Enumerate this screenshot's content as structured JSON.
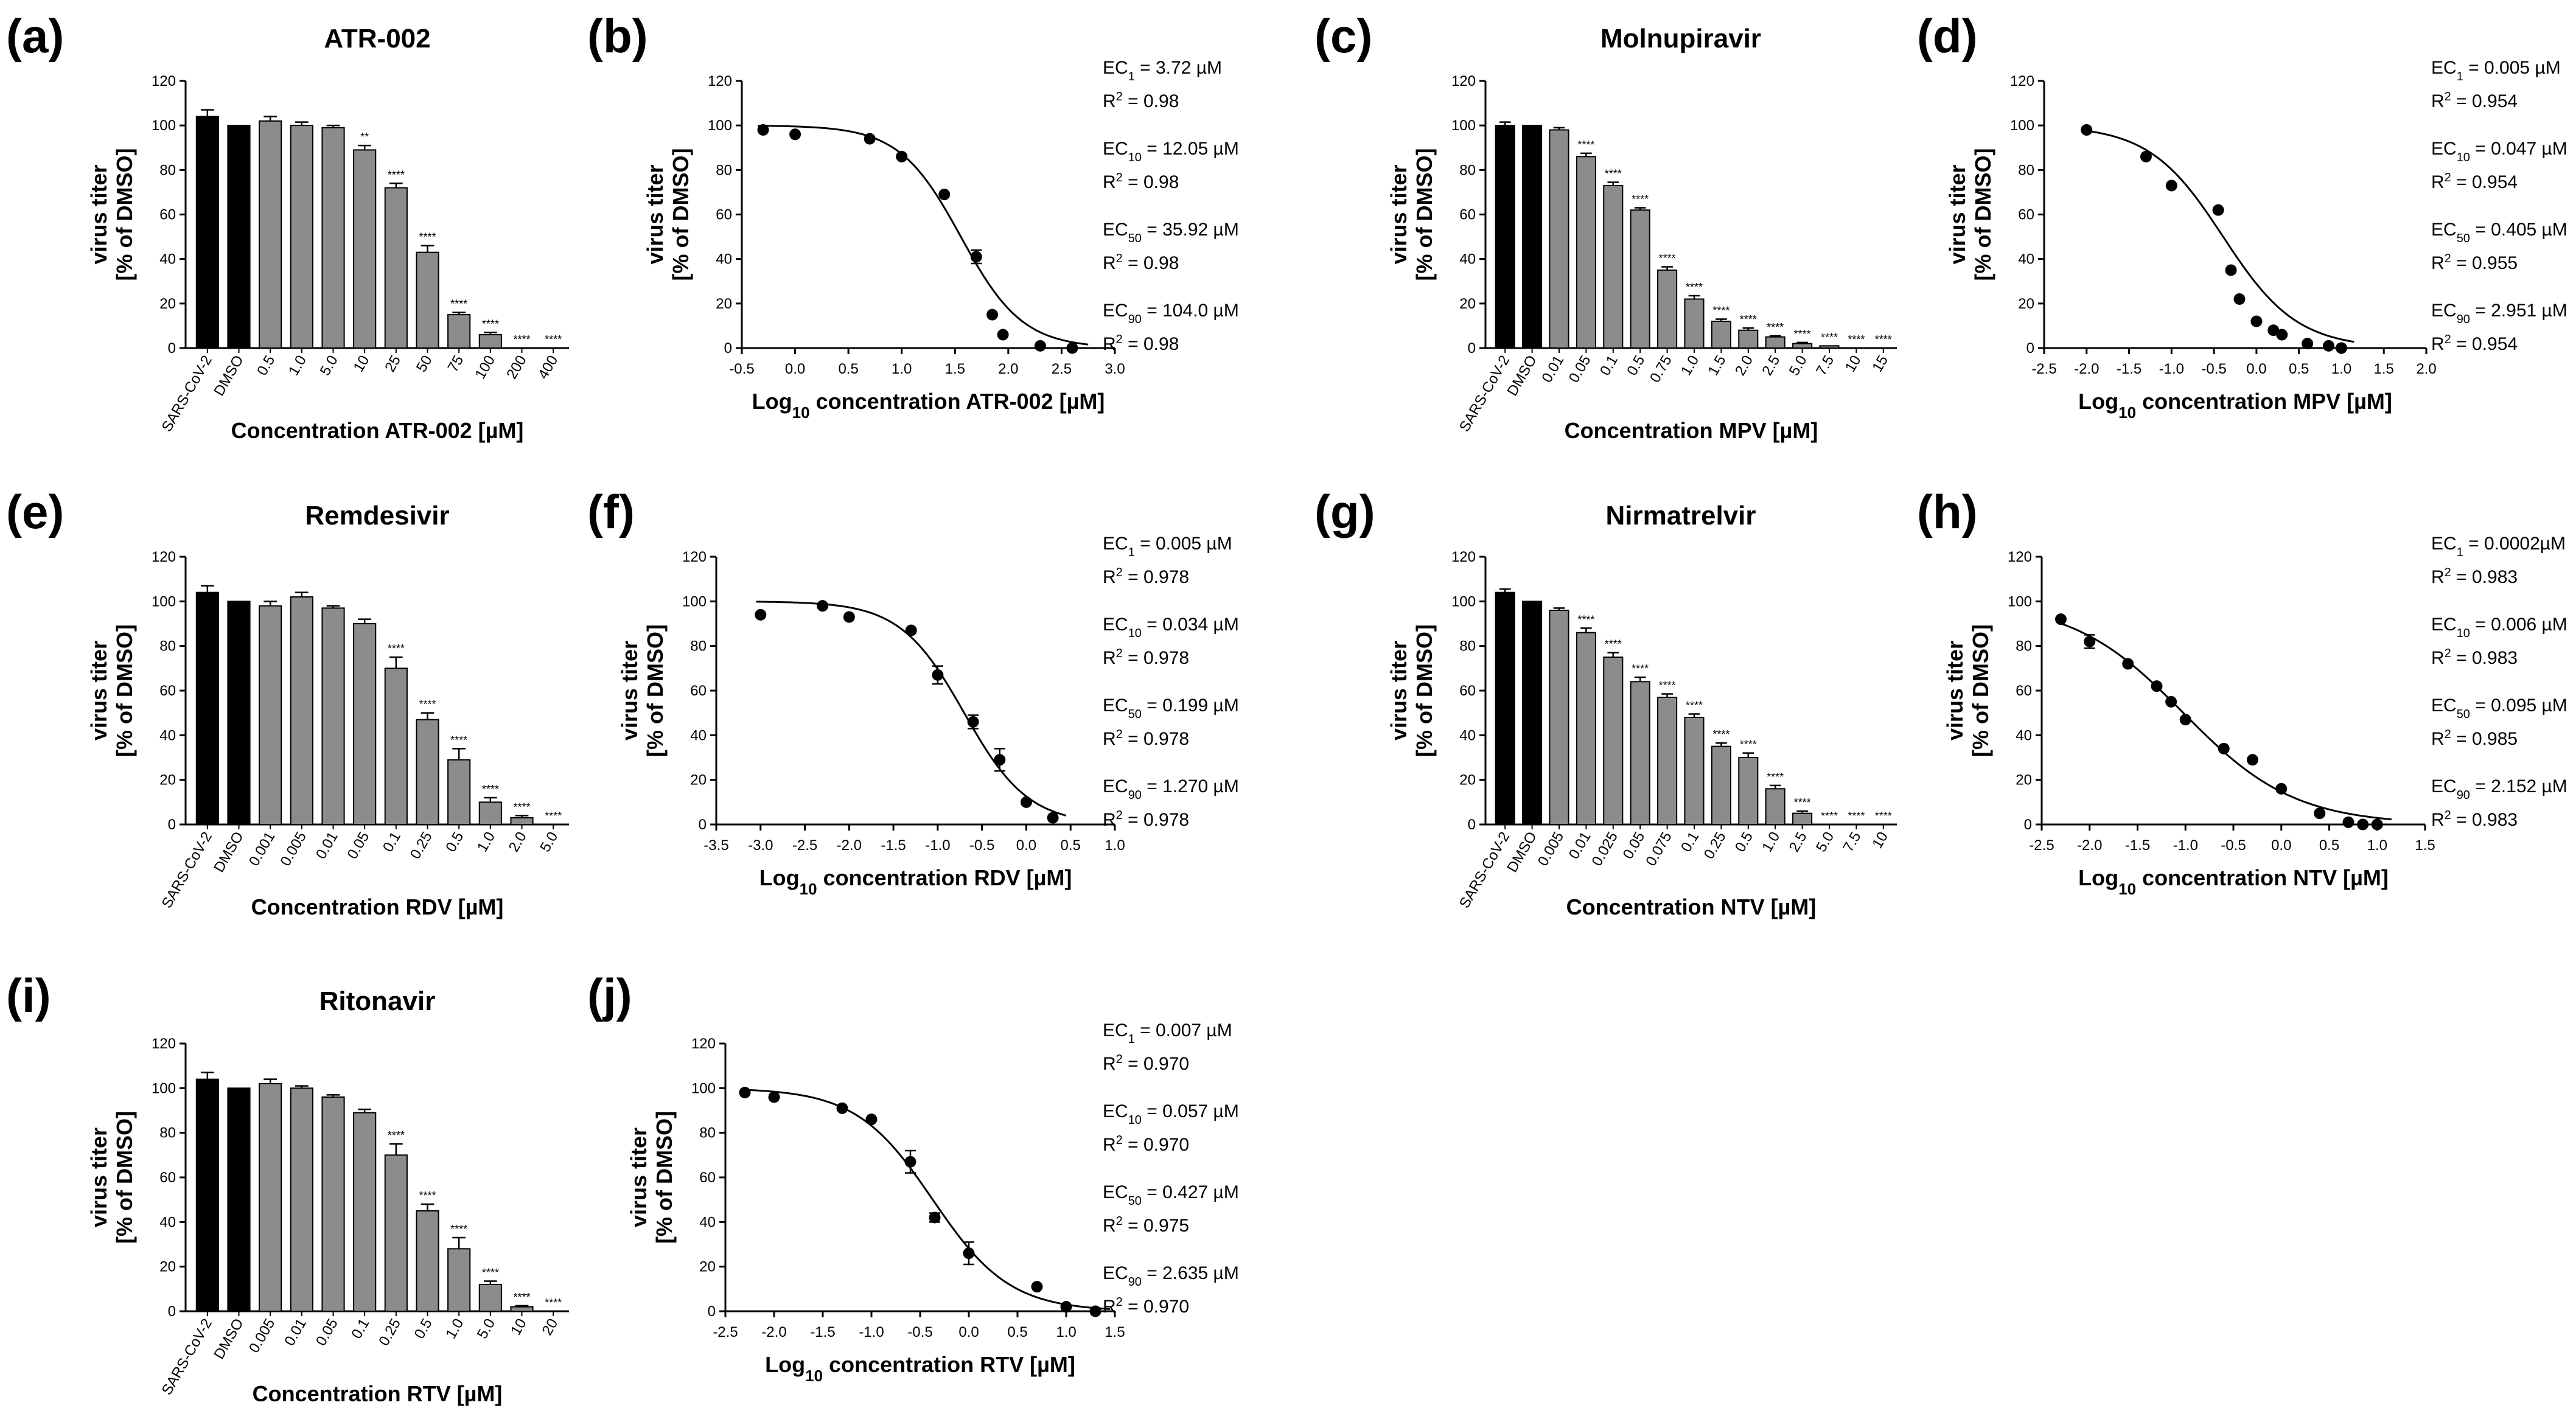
{
  "figure": {
    "y_label_line1": "virus titer",
    "y_label_line2": "[% of DMSO]"
  },
  "chart_data": [
    {
      "id": "a",
      "panel_label": "(a)",
      "type": "bar",
      "title": "ATR-002",
      "xlabel": "Concentration ATR-002 [µM]",
      "ylabel": "virus titer [% of DMSO]",
      "ylim": [
        0,
        120
      ],
      "yticks": [
        "0",
        "20",
        "40",
        "60",
        "80",
        "100",
        "120"
      ],
      "categories": [
        "SARS-CoV-2",
        "DMSO",
        "0.5",
        "1.0",
        "5.0",
        "10",
        "25",
        "50",
        "75",
        "100",
        "200",
        "400"
      ],
      "values": [
        104,
        100,
        102,
        100,
        99,
        89,
        72,
        43,
        15,
        6,
        0,
        0
      ],
      "errors": [
        3,
        0,
        2,
        1.5,
        1,
        2,
        2,
        3,
        1,
        1,
        0,
        0
      ],
      "colors": [
        "#000000",
        "#000000",
        "#8c8c8c",
        "#8c8c8c",
        "#8c8c8c",
        "#8c8c8c",
        "#8c8c8c",
        "#8c8c8c",
        "#8c8c8c",
        "#8c8c8c",
        "#8c8c8c",
        "#8c8c8c"
      ],
      "significance": [
        "",
        "",
        "",
        "",
        "",
        "**",
        "****",
        "****",
        "****",
        "****",
        "****",
        "****"
      ]
    },
    {
      "id": "b",
      "panel_label": "(b)",
      "type": "scatter",
      "fit": "dose-response",
      "xlabel_prefix": "Log",
      "xlabel_sub": "10",
      "xlabel_suffix": " concentration ATR-002 [µM]",
      "ylabel": "virus titer [% of DMSO]",
      "xlim": [
        -0.5,
        3.0
      ],
      "ylim": [
        0,
        120
      ],
      "xticks": [
        "-0.5",
        "0.0",
        "0.5",
        "1.0",
        "1.5",
        "2.0",
        "2.5",
        "3.0"
      ],
      "yticks": [
        "0",
        "20",
        "40",
        "60",
        "80",
        "100",
        "120"
      ],
      "x": [
        -0.3,
        0.0,
        0.7,
        1.0,
        1.4,
        1.7,
        1.85,
        1.95,
        2.3,
        2.6
      ],
      "y": [
        98,
        96,
        94,
        86,
        69,
        41,
        15,
        6,
        1,
        0
      ],
      "errors": [
        0,
        0,
        0,
        0,
        0,
        3,
        0,
        0,
        0,
        0
      ],
      "fit_params": {
        "top": 100,
        "bottom": 0,
        "log_ec50": 1.555,
        "hill": 1.5
      },
      "annotations": [
        {
          "sub": "1",
          "value": " = 3.72 µM",
          "r2": " = 0.98"
        },
        {
          "sub": "10",
          "value": " = 12.05 µM",
          "r2": " = 0.98"
        },
        {
          "sub": "50",
          "value": " = 35.92 µM",
          "r2": " = 0.98"
        },
        {
          "sub": "90",
          "value": " = 104.0 µM",
          "r2": " = 0.98"
        }
      ]
    },
    {
      "id": "c",
      "panel_label": "(c)",
      "type": "bar",
      "title": "Molnupiravir",
      "xlabel": "Concentration MPV [µM]",
      "ylabel": "virus titer [% of DMSO]",
      "ylim": [
        0,
        120
      ],
      "yticks": [
        "0",
        "20",
        "40",
        "60",
        "80",
        "100",
        "120"
      ],
      "categories": [
        "SARS-CoV-2",
        "DMSO",
        "0.01",
        "0.05",
        "0.1",
        "0.5",
        "0.75",
        "1.0",
        "1.5",
        "2.0",
        "2.5",
        "5.0",
        "7.5",
        "10",
        "15"
      ],
      "values": [
        100,
        100,
        98,
        86,
        73,
        62,
        35,
        22,
        12,
        8,
        5,
        2,
        1,
        0,
        0
      ],
      "errors": [
        1.5,
        0,
        1,
        1.5,
        1.5,
        1,
        1.5,
        1.5,
        1,
        1,
        0.5,
        0.5,
        0,
        0,
        0
      ],
      "colors": [
        "#000000",
        "#000000",
        "#8c8c8c",
        "#8c8c8c",
        "#8c8c8c",
        "#8c8c8c",
        "#8c8c8c",
        "#8c8c8c",
        "#8c8c8c",
        "#8c8c8c",
        "#8c8c8c",
        "#8c8c8c",
        "#8c8c8c",
        "#8c8c8c",
        "#8c8c8c"
      ],
      "significance": [
        "",
        "",
        "",
        "****",
        "****",
        "****",
        "****",
        "****",
        "****",
        "****",
        "****",
        "****",
        "****",
        "****",
        "****"
      ]
    },
    {
      "id": "d",
      "panel_label": "(d)",
      "type": "scatter",
      "fit": "dose-response",
      "xlabel_prefix": "Log",
      "xlabel_sub": "10",
      "xlabel_suffix": " concentration MPV [µM]",
      "ylabel": "virus titer [% of DMSO]",
      "xlim": [
        -2.5,
        2.0
      ],
      "ylim": [
        0,
        120
      ],
      "xticks": [
        "-2.5",
        "-2.0",
        "-1.5",
        "-1.0",
        "-0.5",
        "0.0",
        "0.5",
        "1.0",
        "1.5",
        "2.0"
      ],
      "yticks": [
        "0",
        "20",
        "40",
        "60",
        "80",
        "100",
        "120"
      ],
      "x": [
        -2.0,
        -1.3,
        -1.0,
        -0.45,
        -0.3,
        -0.2,
        0.0,
        0.2,
        0.3,
        0.6,
        0.85,
        1.0
      ],
      "y": [
        98,
        86,
        73,
        62,
        35,
        22,
        12,
        8,
        6,
        2,
        1,
        0
      ],
      "errors": [
        0,
        0,
        0,
        0,
        0,
        0,
        0,
        0,
        0,
        0,
        0,
        0
      ],
      "fit_params": {
        "top": 100,
        "bottom": 0,
        "log_ec50": -0.392,
        "hill": 1.0
      },
      "annotations": [
        {
          "sub": "1",
          "value": " = 0.005 µM",
          "r2": " = 0.954"
        },
        {
          "sub": "10",
          "value": " = 0.047 µM",
          "r2": " = 0.954"
        },
        {
          "sub": "50",
          "value": " = 0.405 µM",
          "r2": " = 0.955"
        },
        {
          "sub": "90",
          "value": " = 2.951 µM",
          "r2": " = 0.954"
        }
      ]
    },
    {
      "id": "e",
      "panel_label": "(e)",
      "type": "bar",
      "title": "Remdesivir",
      "xlabel": "Concentration RDV [µM]",
      "ylabel": "virus titer [% of DMSO]",
      "ylim": [
        0,
        120
      ],
      "yticks": [
        "0",
        "20",
        "40",
        "60",
        "80",
        "100",
        "120"
      ],
      "categories": [
        "SARS-CoV-2",
        "DMSO",
        "0.001",
        "0.005",
        "0.01",
        "0.05",
        "0.1",
        "0.25",
        "0.5",
        "1.0",
        "2.0",
        "5.0"
      ],
      "values": [
        104,
        100,
        98,
        102,
        97,
        90,
        70,
        47,
        29,
        10,
        3,
        0
      ],
      "errors": [
        3,
        0,
        2,
        2,
        1,
        2,
        5,
        3,
        5,
        2,
        1,
        0
      ],
      "colors": [
        "#000000",
        "#000000",
        "#8c8c8c",
        "#8c8c8c",
        "#8c8c8c",
        "#8c8c8c",
        "#8c8c8c",
        "#8c8c8c",
        "#8c8c8c",
        "#8c8c8c",
        "#8c8c8c",
        "#8c8c8c"
      ],
      "significance": [
        "",
        "",
        "",
        "",
        "",
        "",
        "****",
        "****",
        "****",
        "****",
        "****",
        "****"
      ]
    },
    {
      "id": "f",
      "panel_label": "(f)",
      "type": "scatter",
      "fit": "dose-response",
      "xlabel_prefix": "Log",
      "xlabel_sub": "10",
      "xlabel_suffix": " concentration RDV [µM]",
      "ylabel": "virus titer [% of DMSO]",
      "xlim": [
        -3.5,
        1.0
      ],
      "ylim": [
        0,
        120
      ],
      "xticks": [
        "-3.5",
        "-3.0",
        "-2.5",
        "-2.0",
        "-1.5",
        "-1.0",
        "-0.5",
        "0.0",
        "0.5",
        "1.0"
      ],
      "yticks": [
        "0",
        "20",
        "40",
        "60",
        "80",
        "100",
        "120"
      ],
      "x": [
        -3.0,
        -2.3,
        -2.0,
        -1.3,
        -1.0,
        -0.6,
        -0.3,
        0.0,
        0.3
      ],
      "y": [
        94,
        98,
        93,
        87,
        67,
        46,
        29,
        10,
        3
      ],
      "errors": [
        0,
        0,
        0,
        0,
        4,
        3,
        5,
        0,
        0
      ],
      "fit_params": {
        "top": 100,
        "bottom": 0,
        "log_ec50": -0.701,
        "hill": 1.2
      },
      "annotations": [
        {
          "sub": "1",
          "value": " = 0.005 µM",
          "r2": " = 0.978"
        },
        {
          "sub": "10",
          "value": " = 0.034 µM",
          "r2": " = 0.978"
        },
        {
          "sub": "50",
          "value": " = 0.199 µM",
          "r2": " = 0.978"
        },
        {
          "sub": "90",
          "value": " = 1.270 µM",
          "r2": " = 0.978"
        }
      ]
    },
    {
      "id": "g",
      "panel_label": "(g)",
      "type": "bar",
      "title": "Nirmatrelvir",
      "xlabel": "Concentration NTV [µM]",
      "ylabel": "virus titer [% of DMSO]",
      "ylim": [
        0,
        120
      ],
      "yticks": [
        "0",
        "20",
        "40",
        "60",
        "80",
        "100",
        "120"
      ],
      "categories": [
        "SARS-CoV-2",
        "DMSO",
        "0.005",
        "0.01",
        "0.025",
        "0.05",
        "0.075",
        "0.1",
        "0.25",
        "0.5",
        "1.0",
        "2.5",
        "5.0",
        "7.5",
        "10"
      ],
      "values": [
        104,
        100,
        96,
        86,
        75,
        64,
        57,
        48,
        35,
        30,
        16,
        5,
        0,
        0,
        0
      ],
      "errors": [
        1.5,
        0,
        1,
        2,
        2,
        2,
        1.5,
        1.5,
        1.5,
        2,
        1.5,
        1,
        0,
        0,
        0
      ],
      "colors": [
        "#000000",
        "#000000",
        "#8c8c8c",
        "#8c8c8c",
        "#8c8c8c",
        "#8c8c8c",
        "#8c8c8c",
        "#8c8c8c",
        "#8c8c8c",
        "#8c8c8c",
        "#8c8c8c",
        "#8c8c8c",
        "#8c8c8c",
        "#8c8c8c",
        "#8c8c8c"
      ],
      "significance": [
        "",
        "",
        "",
        "****",
        "****",
        "****",
        "****",
        "****",
        "****",
        "****",
        "****",
        "****",
        "****",
        "****",
        "****"
      ]
    },
    {
      "id": "h",
      "panel_label": "(h)",
      "type": "scatter",
      "fit": "dose-response",
      "xlabel_prefix": "Log",
      "xlabel_sub": "10",
      "xlabel_suffix": " concentration NTV [µM]",
      "ylabel": "virus titer [% of DMSO]",
      "xlim": [
        -2.5,
        1.5
      ],
      "ylim": [
        0,
        120
      ],
      "xticks": [
        "-2.5",
        "-2.0",
        "-1.5",
        "-1.0",
        "-0.5",
        "0.0",
        "0.5",
        "1.0",
        "1.5"
      ],
      "yticks": [
        "0",
        "20",
        "40",
        "60",
        "80",
        "100",
        "120"
      ],
      "x": [
        -2.3,
        -2.0,
        -1.6,
        -1.3,
        -1.15,
        -1.0,
        -0.6,
        -0.3,
        0.0,
        0.4,
        0.7,
        0.85,
        1.0
      ],
      "y": [
        92,
        82,
        72,
        62,
        55,
        47,
        34,
        29,
        16,
        5,
        1,
        0,
        0
      ],
      "errors": [
        0,
        3,
        0,
        0,
        0,
        0,
        0,
        0,
        0,
        0,
        0,
        0,
        0
      ],
      "fit_params": {
        "top": 100,
        "bottom": 0,
        "log_ec50": -1.022,
        "hill": 0.75
      },
      "annotations": [
        {
          "sub": "1",
          "value": " =  0.0002µM",
          "r2": " = 0.983"
        },
        {
          "sub": "10",
          "value": " = 0.006  µM",
          "r2": " = 0.983"
        },
        {
          "sub": "50",
          "value": " = 0.095 µM",
          "r2": " = 0.985"
        },
        {
          "sub": "90",
          "value": " = 2.152 µM",
          "r2": " = 0.983"
        }
      ]
    },
    {
      "id": "i",
      "panel_label": "(i)",
      "type": "bar",
      "title": "Ritonavir",
      "xlabel": "Concentration RTV [µM]",
      "ylabel": "virus titer [% of DMSO]",
      "ylim": [
        0,
        120
      ],
      "yticks": [
        "0",
        "20",
        "40",
        "60",
        "80",
        "100",
        "120"
      ],
      "categories": [
        "SARS-CoV-2",
        "DMSO",
        "0.005",
        "0.01",
        "0.05",
        "0.1",
        "0.25",
        "0.5",
        "1.0",
        "5.0",
        "10",
        "20"
      ],
      "values": [
        104,
        100,
        102,
        100,
        96,
        89,
        70,
        45,
        28,
        12,
        2,
        0
      ],
      "errors": [
        3,
        0,
        2,
        1,
        1,
        1.5,
        5,
        3,
        5,
        1.5,
        0.5,
        0
      ],
      "colors": [
        "#000000",
        "#000000",
        "#8c8c8c",
        "#8c8c8c",
        "#8c8c8c",
        "#8c8c8c",
        "#8c8c8c",
        "#8c8c8c",
        "#8c8c8c",
        "#8c8c8c",
        "#8c8c8c",
        "#8c8c8c"
      ],
      "significance": [
        "",
        "",
        "",
        "",
        "",
        "",
        "****",
        "****",
        "****",
        "****",
        "****",
        "****"
      ]
    },
    {
      "id": "j",
      "panel_label": "(j)",
      "type": "scatter",
      "fit": "dose-response",
      "xlabel_prefix": "Log",
      "xlabel_sub": "10",
      "xlabel_suffix": " concentration RTV [µM]",
      "ylabel": "virus titer [% of DMSO]",
      "xlim": [
        -2.5,
        1.5
      ],
      "ylim": [
        0,
        120
      ],
      "xticks": [
        "-2.5",
        "-2.0",
        "-1.5",
        "-1.0",
        "-0.5",
        "0.0",
        "0.5",
        "1.0",
        "1.5"
      ],
      "yticks": [
        "0",
        "20",
        "40",
        "60",
        "80",
        "100",
        "120"
      ],
      "x": [
        -2.3,
        -2.0,
        -1.3,
        -1.0,
        -0.6,
        -0.35,
        0.0,
        0.7,
        1.0,
        1.3
      ],
      "y": [
        98,
        96,
        91,
        86,
        67,
        42,
        26,
        11,
        2,
        0
      ],
      "errors": [
        0,
        0,
        0,
        0,
        5,
        2,
        5,
        0,
        0,
        0
      ],
      "fit_params": {
        "top": 100,
        "bottom": 0,
        "log_ec50": -0.37,
        "hill": 1.1
      },
      "annotations": [
        {
          "sub": "1",
          "value": " = 0.007 µM",
          "r2": " = 0.970"
        },
        {
          "sub": "10",
          "value": " = 0.057 µM",
          "r2": " = 0.970"
        },
        {
          "sub": "50",
          "value": " = 0.427 µM",
          "r2": " = 0.975"
        },
        {
          "sub": "90",
          "value": " = 2.635 µM",
          "r2": " = 0.970"
        }
      ]
    }
  ]
}
